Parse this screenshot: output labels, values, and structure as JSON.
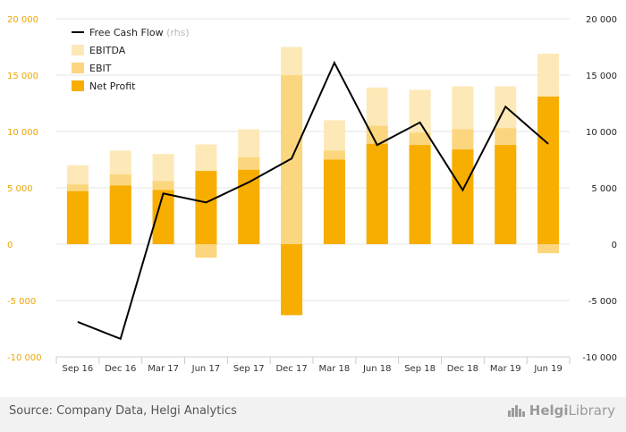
{
  "chart_data": {
    "type": "bar",
    "categories": [
      "Sep 16",
      "Dec 16",
      "Mar 17",
      "Jun 17",
      "Sep 17",
      "Dec 17",
      "Mar 18",
      "Jun 18",
      "Sep 18",
      "Dec 18",
      "Mar 19",
      "Jun 19"
    ],
    "series": [
      {
        "name": "EBITDA",
        "kind": "bar",
        "color": "#fde9b8",
        "values": [
          7000,
          8300,
          8000,
          8850,
          10200,
          17500,
          11000,
          13900,
          13700,
          14000,
          14000,
          16900
        ]
      },
      {
        "name": "EBIT",
        "kind": "bar",
        "color": "#fbd67e",
        "values": [
          5300,
          6200,
          5600,
          -1200,
          7700,
          15000,
          8300,
          10500,
          9900,
          10200,
          10300,
          -800
        ]
      },
      {
        "name": "Net Profit",
        "kind": "bar",
        "color": "#f7ae00",
        "values": [
          4700,
          5200,
          4800,
          6500,
          6600,
          -6300,
          7500,
          8900,
          8800,
          8400,
          8800,
          13100
        ]
      },
      {
        "name": "Free Cash Flow",
        "name_suffix": "(rhs)",
        "kind": "line",
        "color": "#000000",
        "values": [
          -6900,
          -8400,
          4500,
          3700,
          5500,
          7600,
          16100,
          8800,
          10800,
          4800,
          12200,
          8900
        ]
      }
    ],
    "ylim": [
      -10000,
      20000
    ],
    "yticks": [
      "-10 000",
      "-5 000",
      "0",
      "5 000",
      "10 000",
      "15 000",
      "20 000"
    ],
    "ytick_values": [
      -10000,
      -5000,
      0,
      5000,
      10000,
      15000,
      20000
    ],
    "grid": true,
    "legend_position": "top-left"
  },
  "footer": {
    "source": "Source: Company Data, Helgi Analytics",
    "brand_bold": "Helgi",
    "brand_light": "Library"
  }
}
